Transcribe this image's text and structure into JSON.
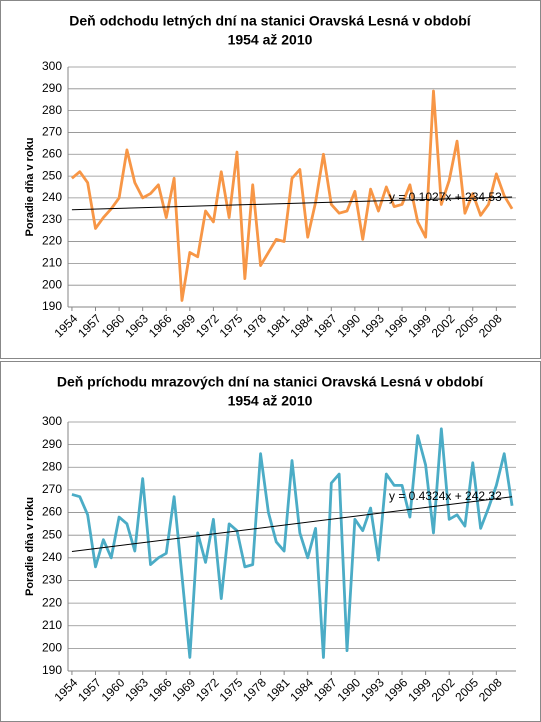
{
  "chart_data": [
    {
      "type": "line",
      "title": [
        "Deň odchodu letných dní na stanici Oravská Lesná v období",
        "1954 až 2010"
      ],
      "ylabel": "Poradie dňa v roku",
      "x": [
        1954,
        1955,
        1956,
        1957,
        1958,
        1959,
        1960,
        1961,
        1962,
        1963,
        1964,
        1965,
        1966,
        1967,
        1968,
        1969,
        1970,
        1971,
        1972,
        1973,
        1974,
        1975,
        1976,
        1977,
        1978,
        1979,
        1980,
        1981,
        1982,
        1983,
        1984,
        1985,
        1986,
        1987,
        1988,
        1989,
        1990,
        1991,
        1992,
        1993,
        1994,
        1995,
        1996,
        1997,
        1998,
        1999,
        2000,
        2001,
        2002,
        2003,
        2004,
        2005,
        2006,
        2007,
        2008,
        2009,
        2010
      ],
      "series": [
        {
          "color": "#f79646",
          "values": [
            249,
            252,
            247,
            226,
            231,
            235,
            240,
            262,
            247,
            240,
            242,
            246,
            231,
            249,
            193,
            215,
            213,
            234,
            229,
            252,
            231,
            261,
            203,
            246,
            209,
            215,
            221,
            220,
            249,
            253,
            222,
            238,
            260,
            237,
            233,
            234,
            243,
            221,
            244,
            234,
            245,
            236,
            237,
            246,
            229,
            222,
            289,
            237,
            248,
            266,
            233,
            242,
            232,
            237,
            251,
            241,
            235
          ]
        }
      ],
      "trendline": {
        "label": "y = 0.1027x + 234.53",
        "values": [
          234.6,
          240.4
        ]
      },
      "xlim": [
        1953.5,
        2010.5
      ],
      "xticks": [
        1954,
        1957,
        1960,
        1963,
        1966,
        1969,
        1972,
        1975,
        1978,
        1981,
        1984,
        1987,
        1990,
        1993,
        1996,
        1999,
        2002,
        2005,
        2008
      ],
      "ylim": [
        190,
        300
      ],
      "yticks": [
        190,
        200,
        210,
        220,
        230,
        240,
        250,
        260,
        270,
        280,
        290,
        300
      ],
      "grid": true
    },
    {
      "type": "line",
      "title": [
        "Deň príchodu mrazových dní na stanici Oravská Lesná v období",
        "1954 až 2010"
      ],
      "ylabel": "Poradie dňa v roku",
      "x": [
        1954,
        1955,
        1956,
        1957,
        1958,
        1959,
        1960,
        1961,
        1962,
        1963,
        1964,
        1965,
        1966,
        1967,
        1968,
        1969,
        1970,
        1971,
        1972,
        1973,
        1974,
        1975,
        1976,
        1977,
        1978,
        1979,
        1980,
        1981,
        1982,
        1983,
        1984,
        1985,
        1986,
        1987,
        1988,
        1989,
        1990,
        1991,
        1992,
        1993,
        1994,
        1995,
        1996,
        1997,
        1998,
        1999,
        2000,
        2001,
        2002,
        2003,
        2004,
        2005,
        2006,
        2007,
        2008,
        2009,
        2010
      ],
      "series": [
        {
          "color": "#4bacc6",
          "values": [
            268,
            267,
            259,
            236,
            248,
            240,
            258,
            255,
            243,
            275,
            237,
            240,
            242,
            267,
            232,
            196,
            251,
            238,
            257,
            222,
            255,
            252,
            236,
            237,
            286,
            260,
            247,
            243,
            283,
            251,
            240,
            253,
            196,
            273,
            277,
            199,
            257,
            252,
            262,
            239,
            277,
            272,
            272,
            258,
            294,
            281,
            251,
            297,
            257,
            259,
            254,
            282,
            253,
            262,
            272,
            286,
            263
          ]
        }
      ],
      "trendline": {
        "label": "y = 0.4324x + 242.32",
        "values": [
          242.8,
          267.0
        ]
      },
      "xlim": [
        1953.5,
        2010.5
      ],
      "xticks": [
        1954,
        1957,
        1960,
        1963,
        1966,
        1969,
        1972,
        1975,
        1978,
        1981,
        1984,
        1987,
        1990,
        1993,
        1996,
        1999,
        2002,
        2005,
        2008
      ],
      "ylim": [
        190,
        300
      ],
      "yticks": [
        190,
        200,
        210,
        220,
        230,
        240,
        250,
        260,
        270,
        280,
        290,
        300
      ],
      "grid": true
    }
  ]
}
